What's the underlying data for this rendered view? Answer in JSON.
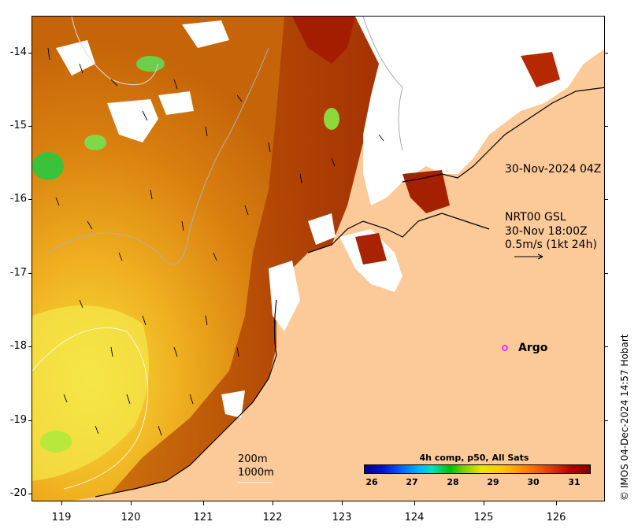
{
  "map": {
    "y_ticks": [
      "-14",
      "-15",
      "-16",
      "-17",
      "-18",
      "-19",
      "-20"
    ],
    "x_ticks": [
      "119",
      "120",
      "121",
      "122",
      "123",
      "124",
      "125",
      "126"
    ],
    "sst_timestamp": "30-Nov-2024 04Z",
    "current_model": "NRT00 GSL",
    "current_time": "30-Nov 18:00Z",
    "current_scale": "0.5m/s (1kt 24h)",
    "argo_label": "Argo",
    "bathy_200": "200m",
    "bathy_1000": "1000m",
    "colorbar_title": "4h comp, p50, All Sats",
    "colorbar_labels": [
      "26",
      "27",
      "28",
      "29",
      "30",
      "31"
    ],
    "credit": "© IMOS 04-Dec-2024 14:57 Hobart",
    "colors": {
      "land": "#fcc998",
      "cloud": "#ffffff",
      "argo": "#ff00ff"
    }
  }
}
